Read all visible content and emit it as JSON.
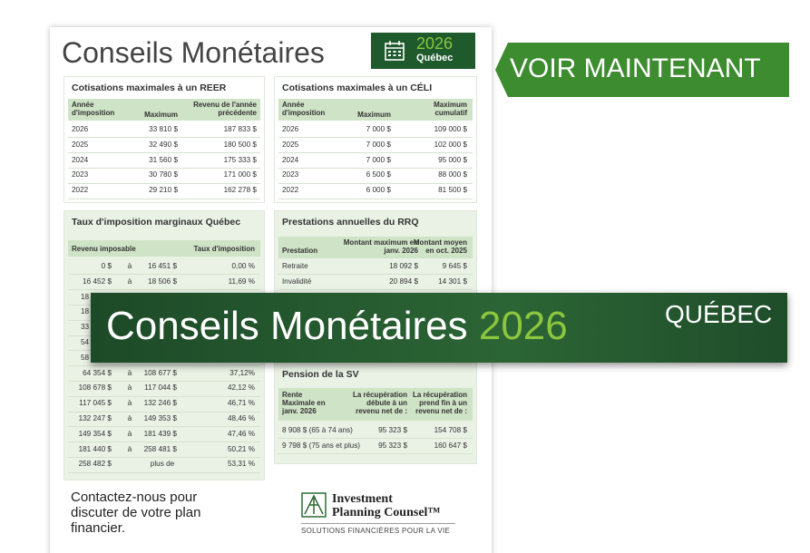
{
  "header": {
    "title": "Conseils Monétaires",
    "year": "2026",
    "region": "Québec"
  },
  "cta": "VOIR MAINTENANT",
  "reer": {
    "title": "Cotisations maximales à un REER",
    "columns": [
      "Année d'imposition",
      "Maximum",
      "Revenu de l'année précédente"
    ],
    "rows": [
      [
        "2026",
        "33 810 $",
        "187 833 $"
      ],
      [
        "2025",
        "32 490 $",
        "180 500 $"
      ],
      [
        "2024",
        "31 560 $",
        "175 333 $"
      ],
      [
        "2023",
        "30 780 $",
        "171 000 $"
      ],
      [
        "2022",
        "29 210 $",
        "162 278 $"
      ]
    ]
  },
  "celi": {
    "title": "Cotisations maximales à un CÉLI",
    "columns": [
      "Année d'imposition",
      "Maximum",
      "Maximum cumulatif"
    ],
    "rows": [
      [
        "2026",
        "7 000  $",
        "109 000 $"
      ],
      [
        "2025",
        "7 000 $",
        "102 000 $"
      ],
      [
        "2024",
        "7 000 $",
        "95 000 $"
      ],
      [
        "2023",
        "6 500 $",
        "88 000 $"
      ],
      [
        "2022",
        "6 000 $",
        "81 500 $"
      ]
    ]
  },
  "tax": {
    "title": "Taux d'imposition marginaux Québec",
    "columns": [
      "Revenu imposable",
      "Taux d'imposition"
    ],
    "rows": [
      [
        "0 $",
        "à",
        "16 451 $",
        "0,00 %"
      ],
      [
        "16 452 $",
        "à",
        "18 506 $",
        "11,69 %"
      ],
      [
        "18"
      ],
      [
        "18"
      ],
      [
        "33"
      ],
      [
        "54"
      ],
      [
        "58"
      ],
      [
        "64 354 $",
        "à",
        "108 677 $",
        "37,12%"
      ],
      [
        "108 678 $",
        "à",
        "117 044 $",
        "42,12 %"
      ],
      [
        "117 045 $",
        "à",
        "132 246 $",
        "46,71 %"
      ],
      [
        "132 247 $",
        "à",
        "149 353 $",
        "48,46 %"
      ],
      [
        "149 354 $",
        "à",
        "181 439 $",
        "47,46 %"
      ],
      [
        "181 440 $",
        "à",
        "258 481 $",
        "50,21 %"
      ],
      [
        "258 482 $",
        "plus de",
        "53,31 %"
      ]
    ]
  },
  "rrq": {
    "title": "Prestations annuelles du RRQ",
    "columns": [
      "Prestation",
      "Montant maximum en janv. 2026",
      "Montant moyen en oct. 2025"
    ],
    "rows": [
      [
        "Retraite",
        "18 092 $",
        "9 645 $"
      ],
      [
        "Invalidité",
        "20 894 $",
        "14 301 $"
      ]
    ]
  },
  "sv": {
    "title": "Pension de la SV",
    "columns": [
      "Rente Maximale en janv. 2026",
      "La récupération débute à un revenu net de :",
      "La récupération prend fin à un revenu net de :"
    ],
    "rows": [
      [
        "8 908 $ (65 à 74 ans)",
        "95 323 $",
        "154 708 $"
      ],
      [
        "9 798 $ (75 ans et plus)",
        "95 323 $",
        "160 647 $"
      ]
    ]
  },
  "banner": {
    "title": "Conseils Monétaires",
    "year": "2026",
    "region": "QUÉBEC"
  },
  "footer": {
    "contact": "Contactez-nous pour discuter de votre plan financier.",
    "logo_lines": [
      "Investment",
      "Planning Counsel™"
    ],
    "tagline": "SOLUTIONS FINANCIÈRES POUR LA VIE"
  }
}
